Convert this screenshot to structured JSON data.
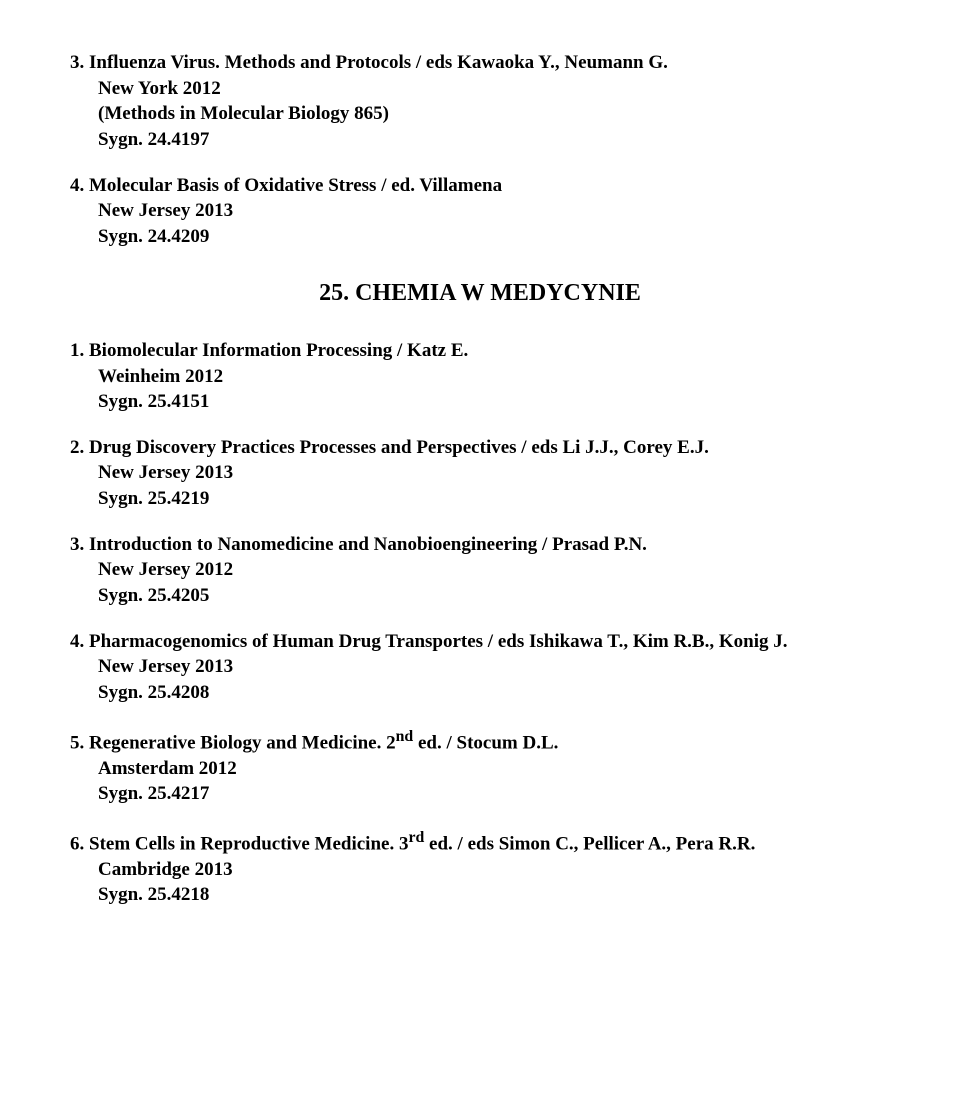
{
  "topEntries": [
    {
      "num": "3.",
      "title": "Influenza Virus. Methods and Protocols / eds Kawaoka Y., Neumann G.",
      "place": "New York 2012",
      "note": "(Methods in Molecular Biology 865)",
      "sygn": "Sygn. 24.4197"
    },
    {
      "num": "4.",
      "title": "Molecular Basis of Oxidative Stress / ed. Villamena",
      "place": "New Jersey 2013",
      "note": "",
      "sygn": "Sygn. 24.4209"
    }
  ],
  "sectionHeading": "25. CHEMIA  W  MEDYCYNIE",
  "entries": [
    {
      "num": "1.",
      "title": "Biomolecular Information Processing / Katz E.",
      "place": "Weinheim 2012",
      "sygn": "Sygn. 25.4151"
    },
    {
      "num": "2.",
      "title": "Drug Discovery Practices Processes and  Perspectives / eds Li J.J., Corey E.J.",
      "place": "New Jersey 2013",
      "sygn": "Sygn. 25.4219"
    },
    {
      "num": "3.",
      "title": "Introduction to Nanomedicine and Nanobioengineering / Prasad P.N.",
      "place": "New Jersey 2012",
      "sygn": "Sygn. 25.4205"
    },
    {
      "num": "4.",
      "title": "Pharmacogenomics of Human Drug Transportes / eds Ishikawa T., Kim R.B., Konig J.",
      "place": "New Jersey 2013",
      "sygn": "Sygn. 25.4208"
    },
    {
      "num": "5.",
      "titlePrefix": "Regenerative Biology and Medicine. 2",
      "sup": "nd",
      "titleSuffix": " ed. / Stocum D.L.",
      "place": "Amsterdam 2012",
      "sygn": "Sygn. 25.4217"
    },
    {
      "num": "6.",
      "titlePrefix": "Stem Cells in Reproductive Medicine. 3",
      "sup": "rd",
      "titleSuffix": " ed. / eds Simon C., Pellicer A., Pera R.R.",
      "place": "Cambridge 2013",
      "sygn": "Sygn. 25.4218"
    }
  ]
}
